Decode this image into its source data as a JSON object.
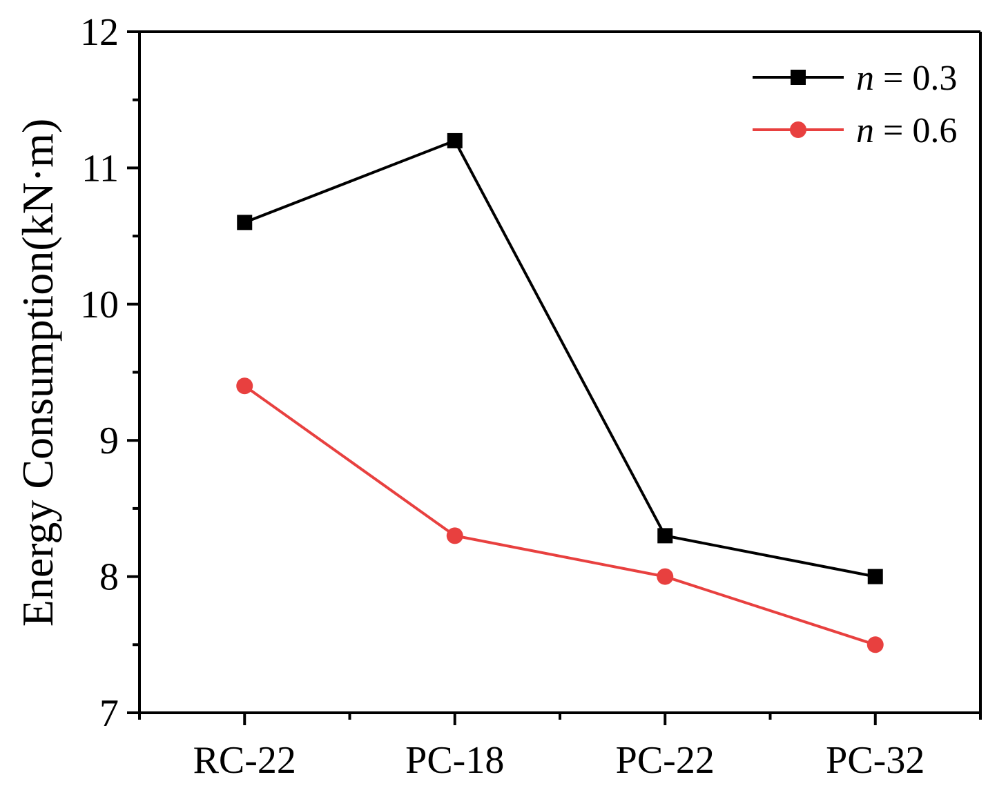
{
  "chart_data": {
    "type": "line",
    "title": "",
    "xlabel": "",
    "ylabel": "Energy Consumption(kN·m)",
    "categories": [
      "RC-22",
      "PC-18",
      "PC-22",
      "PC-32"
    ],
    "ylim": [
      7,
      12
    ],
    "yticks": [
      "7",
      "8",
      "9",
      "10",
      "11",
      "12"
    ],
    "legend_position": "top-right",
    "series": [
      {
        "name": "n = 0.3",
        "name_var": "n",
        "name_rest": " = 0.3",
        "marker": "square",
        "color": "#000000",
        "values": [
          10.6,
          11.2,
          8.3,
          8.0
        ]
      },
      {
        "name": "n = 0.6",
        "name_var": "n",
        "name_rest": " = 0.6",
        "marker": "circle",
        "color": "#e8403f",
        "values": [
          9.4,
          8.3,
          8.0,
          7.5
        ]
      }
    ]
  }
}
